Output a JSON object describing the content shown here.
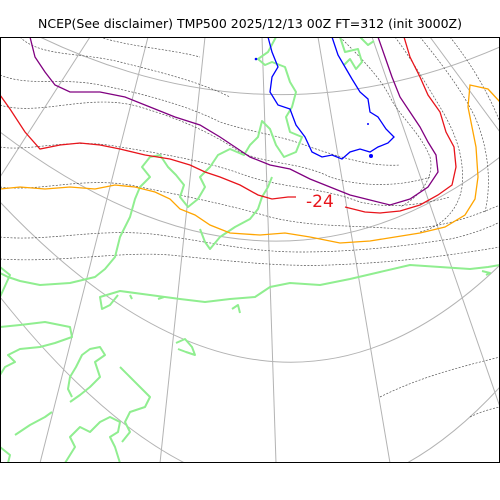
{
  "map": {
    "title": "NCEP(See disclaimer) TMP500 2025/12/13 00Z FT=312 (init 3000Z)",
    "contour_label": "-24",
    "colors": {
      "graticule": "#b3b3b3",
      "coastline": "#90ee90",
      "isotherm_minus24": "#e8141b",
      "isotherm_minus18": "#ffa500",
      "isotherm_minus30": "#800080",
      "isotherm_minus36": "#0000ff",
      "height_contours": "#555555",
      "frame": "#000000"
    }
  }
}
